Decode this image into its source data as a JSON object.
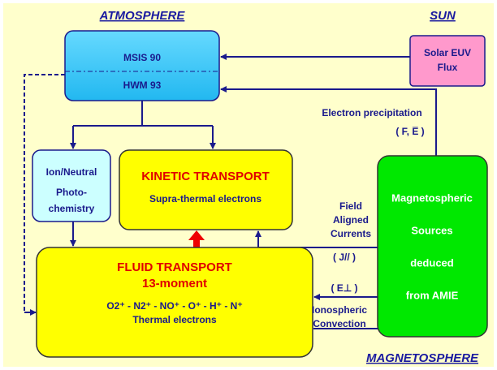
{
  "labels": {
    "atmosphere": "ATMOSPHERE",
    "sun": "SUN",
    "magnetosphere": "MAGNETOSPHERE"
  },
  "nodes": {
    "msis": "MSIS 90",
    "hwm": "HWM 93",
    "solar": [
      "Solar EUV",
      "Flux"
    ],
    "ion_neutral": [
      "Ion/Neutral",
      "Photo-",
      "chemistry"
    ],
    "kinetic": {
      "title": "KINETIC TRANSPORT",
      "subtitle": "Supra-thermal  electrons"
    },
    "fluid": {
      "title": "FLUID TRANSPORT",
      "subtitle": "13-moment",
      "species": "O2⁺ - N2⁺ - NO⁺ - O⁺ - H⁺ - N⁺",
      "electrons": "Thermal   electrons"
    },
    "magnetospheric": [
      "Magnetospheric",
      "Sources",
      "deduced",
      "from AMIE"
    ]
  },
  "edges": {
    "precipitation": [
      "Electron precipitation",
      "( F, E̅ )"
    ],
    "currents": [
      "Field",
      "Aligned",
      "Currents",
      "( J// )"
    ],
    "convection": [
      "( E⊥ )",
      "Ionospheric",
      "Convection"
    ]
  }
}
